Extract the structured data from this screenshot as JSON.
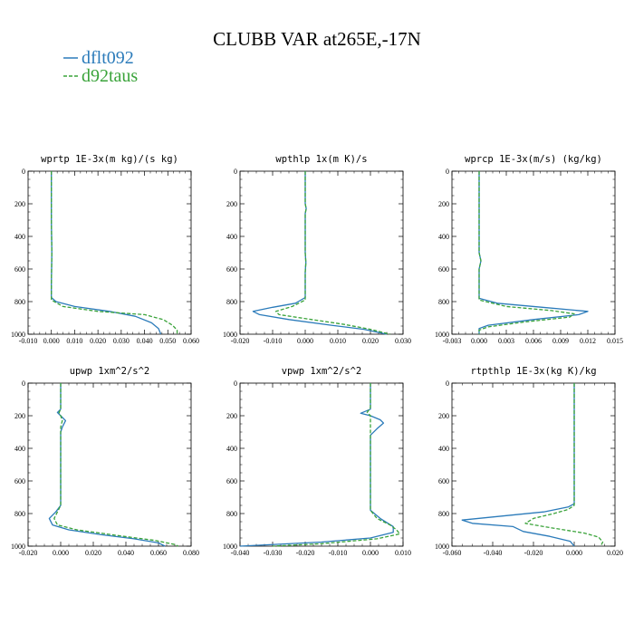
{
  "title": "CLUBB VAR at265E,-17N",
  "legend": [
    {
      "name": "dflt092",
      "color": "#2b7bba"
    },
    {
      "name": "d92taus",
      "color": "#3aa33a"
    }
  ],
  "chart_data": [
    {
      "type": "line",
      "title": "wprtp  1E-3x(m kg)/(s kg)",
      "xlim": [
        -0.01,
        0.06
      ],
      "xticks": [
        "-0.010",
        "0.000",
        "0.010",
        "0.020",
        "0.030",
        "0.040",
        "0.050",
        "0.060"
      ],
      "ylim": [
        0,
        1000
      ],
      "yticks": [
        "0",
        "200",
        "400",
        "600",
        "800",
        "1000"
      ],
      "y_inverted": true,
      "series": [
        {
          "name": "dflt092",
          "points": [
            [
              0.0,
              0
            ],
            [
              0.0,
              300
            ],
            [
              0.0002,
              500
            ],
            [
              0.0,
              700
            ],
            [
              0.0,
              775
            ],
            [
              0.002,
              800
            ],
            [
              0.01,
              830
            ],
            [
              0.025,
              860
            ],
            [
              0.036,
              890
            ],
            [
              0.043,
              930
            ],
            [
              0.046,
              965
            ],
            [
              0.047,
              1000
            ]
          ]
        },
        {
          "name": "d92taus",
          "points": [
            [
              0.0,
              0
            ],
            [
              0.0,
              300
            ],
            [
              0.0002,
              500
            ],
            [
              0.0,
              700
            ],
            [
              0.0,
              790
            ],
            [
              0.005,
              830
            ],
            [
              0.02,
              860
            ],
            [
              0.04,
              880
            ],
            [
              0.048,
              910
            ],
            [
              0.052,
              945
            ],
            [
              0.054,
              975
            ],
            [
              0.054,
              1000
            ]
          ]
        }
      ]
    },
    {
      "type": "line",
      "title": "wpthlp  1x(m K)/s",
      "xlim": [
        -0.02,
        0.03
      ],
      "xticks": [
        "-0.020",
        "-0.010",
        "0.000",
        "0.010",
        "0.020",
        "0.030"
      ],
      "ylim": [
        0,
        1000
      ],
      "yticks": [
        "0",
        "200",
        "400",
        "600",
        "800",
        "1000"
      ],
      "y_inverted": true,
      "series": [
        {
          "name": "dflt092",
          "points": [
            [
              0.0,
              0
            ],
            [
              0.0,
              200
            ],
            [
              0.0003,
              230
            ],
            [
              0.0,
              260
            ],
            [
              0.0,
              500
            ],
            [
              0.0002,
              560
            ],
            [
              0.0,
              620
            ],
            [
              0.0,
              775
            ],
            [
              -0.003,
              810
            ],
            [
              -0.01,
              835
            ],
            [
              -0.016,
              860
            ],
            [
              -0.014,
              880
            ],
            [
              -0.005,
              910
            ],
            [
              0.008,
              945
            ],
            [
              0.018,
              970
            ],
            [
              0.025,
              1000
            ]
          ]
        },
        {
          "name": "d92taus",
          "points": [
            [
              0.0,
              0
            ],
            [
              0.0,
              200
            ],
            [
              0.0003,
              230
            ],
            [
              0.0,
              260
            ],
            [
              0.0,
              500
            ],
            [
              0.0002,
              560
            ],
            [
              0.0,
              620
            ],
            [
              0.0,
              790
            ],
            [
              -0.004,
              830
            ],
            [
              -0.009,
              860
            ],
            [
              -0.008,
              880
            ],
            [
              0.002,
              910
            ],
            [
              0.012,
              940
            ],
            [
              0.02,
              970
            ],
            [
              0.026,
              1000
            ]
          ]
        }
      ]
    },
    {
      "type": "line",
      "title": "wprcp  1E-3x(m/s) (kg/kg)",
      "xlim": [
        -0.003,
        0.015
      ],
      "xticks": [
        "-0.003",
        "0.000",
        "0.003",
        "0.006",
        "0.009",
        "0.012",
        "0.015"
      ],
      "ylim": [
        0,
        1000
      ],
      "yticks": [
        "0",
        "200",
        "400",
        "600",
        "800",
        "1000"
      ],
      "y_inverted": true,
      "series": [
        {
          "name": "dflt092",
          "points": [
            [
              0.0,
              0
            ],
            [
              0.0,
              500
            ],
            [
              0.0002,
              550
            ],
            [
              0.0,
              600
            ],
            [
              0.0,
              780
            ],
            [
              0.002,
              810
            ],
            [
              0.007,
              835
            ],
            [
              0.012,
              860
            ],
            [
              0.011,
              880
            ],
            [
              0.006,
              910
            ],
            [
              0.001,
              945
            ],
            [
              0.0,
              965
            ],
            [
              0.0,
              1000
            ]
          ]
        },
        {
          "name": "d92taus",
          "points": [
            [
              0.0,
              0
            ],
            [
              0.0,
              500
            ],
            [
              0.0002,
              550
            ],
            [
              0.0,
              600
            ],
            [
              0.0,
              790
            ],
            [
              0.003,
              830
            ],
            [
              0.008,
              855
            ],
            [
              0.0105,
              875
            ],
            [
              0.01,
              895
            ],
            [
              0.005,
              925
            ],
            [
              0.001,
              955
            ],
            [
              0.0,
              975
            ],
            [
              0.0,
              1000
            ]
          ]
        }
      ]
    },
    {
      "type": "line",
      "title": "upwp  1xm^2/s^2",
      "xlim": [
        -0.02,
        0.08
      ],
      "xticks": [
        "-0.020",
        "0.000",
        "0.020",
        "0.040",
        "0.060",
        "0.080"
      ],
      "ylim": [
        0,
        1000
      ],
      "yticks": [
        "0",
        "200",
        "400",
        "600",
        "800",
        "1000"
      ],
      "y_inverted": true,
      "series": [
        {
          "name": "dflt092",
          "points": [
            [
              0.0,
              0
            ],
            [
              0.0,
              160
            ],
            [
              -0.002,
              180
            ],
            [
              0.0,
              200
            ],
            [
              0.003,
              230
            ],
            [
              0.001,
              270
            ],
            [
              0.0,
              300
            ],
            [
              0.0,
              750
            ],
            [
              -0.003,
              790
            ],
            [
              -0.007,
              830
            ],
            [
              -0.005,
              870
            ],
            [
              0.005,
              900
            ],
            [
              0.025,
              930
            ],
            [
              0.045,
              955
            ],
            [
              0.06,
              980
            ],
            [
              0.064,
              1000
            ]
          ]
        },
        {
          "name": "d92taus",
          "points": [
            [
              0.0,
              0
            ],
            [
              0.0,
              160
            ],
            [
              -0.001,
              180
            ],
            [
              0.0,
              200
            ],
            [
              0.001,
              230
            ],
            [
              0.0,
              270
            ],
            [
              0.0,
              750
            ],
            [
              -0.002,
              790
            ],
            [
              -0.004,
              830
            ],
            [
              -0.002,
              870
            ],
            [
              0.01,
              900
            ],
            [
              0.035,
              935
            ],
            [
              0.058,
              965
            ],
            [
              0.07,
              990
            ],
            [
              0.072,
              1000
            ]
          ]
        }
      ]
    },
    {
      "type": "line",
      "title": "vpwp  1xm^2/s^2",
      "xlim": [
        -0.04,
        0.01
      ],
      "xticks": [
        "-0.040",
        "-0.030",
        "-0.020",
        "-0.010",
        "0.000",
        "0.010"
      ],
      "ylim": [
        0,
        1000
      ],
      "yticks": [
        "0",
        "200",
        "400",
        "600",
        "800",
        "1000"
      ],
      "y_inverted": true,
      "series": [
        {
          "name": "dflt092",
          "points": [
            [
              0.0,
              0
            ],
            [
              0.0,
              160
            ],
            [
              -0.003,
              185
            ],
            [
              0.0,
              200
            ],
            [
              0.003,
              225
            ],
            [
              0.004,
              245
            ],
            [
              0.002,
              280
            ],
            [
              0.0,
              320
            ],
            [
              0.0,
              780
            ],
            [
              0.003,
              830
            ],
            [
              0.007,
              880
            ],
            [
              0.007,
              915
            ],
            [
              0.0,
              950
            ],
            [
              -0.015,
              975
            ],
            [
              -0.035,
              995
            ],
            [
              -0.04,
              1000
            ]
          ]
        },
        {
          "name": "d92taus",
          "points": [
            [
              0.0,
              0
            ],
            [
              0.0,
              150
            ],
            [
              -0.001,
              180
            ],
            [
              0.0,
              200
            ],
            [
              0.0,
              780
            ],
            [
              0.002,
              830
            ],
            [
              0.006,
              870
            ],
            [
              0.008,
              900
            ],
            [
              0.009,
              925
            ],
            [
              0.002,
              955
            ],
            [
              -0.015,
              985
            ],
            [
              -0.03,
              1000
            ]
          ]
        }
      ]
    },
    {
      "type": "line",
      "title": "rtpthlp  1E-3x(kg K)/kg",
      "xlim": [
        -0.06,
        0.02
      ],
      "xticks": [
        "-0.060",
        "-0.040",
        "-0.020",
        "0.000",
        "0.020"
      ],
      "ylim": [
        0,
        1000
      ],
      "yticks": [
        "0",
        "200",
        "400",
        "600",
        "800",
        "1000"
      ],
      "y_inverted": true,
      "series": [
        {
          "name": "dflt092",
          "points": [
            [
              0.0,
              0
            ],
            [
              0.0,
              740
            ],
            [
              -0.003,
              760
            ],
            [
              -0.015,
              790
            ],
            [
              -0.035,
              815
            ],
            [
              -0.055,
              840
            ],
            [
              -0.05,
              860
            ],
            [
              -0.03,
              880
            ],
            [
              -0.025,
              910
            ],
            [
              -0.012,
              940
            ],
            [
              -0.002,
              970
            ],
            [
              0.0,
              1000
            ]
          ]
        },
        {
          "name": "d92taus",
          "points": [
            [
              0.0,
              0
            ],
            [
              0.0,
              750
            ],
            [
              -0.003,
              775
            ],
            [
              -0.01,
              800
            ],
            [
              -0.02,
              830
            ],
            [
              -0.024,
              860
            ],
            [
              -0.015,
              880
            ],
            [
              -0.005,
              900
            ],
            [
              0.005,
              920
            ],
            [
              0.012,
              945
            ],
            [
              0.014,
              975
            ],
            [
              0.013,
              1000
            ]
          ]
        }
      ]
    }
  ]
}
